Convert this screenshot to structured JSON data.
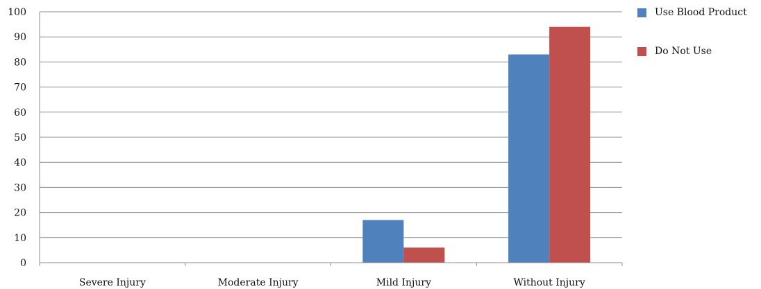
{
  "chart_data": {
    "type": "bar",
    "title": "",
    "xlabel": "",
    "ylabel": "",
    "categories": [
      "Severe Injury",
      "Moderate Injury",
      "Mild Injury",
      "Without Injury"
    ],
    "series": [
      {
        "name": "Use Blood Product",
        "color": "#4F81BD",
        "values": [
          0,
          0,
          17,
          83
        ]
      },
      {
        "name": "Do Not Use",
        "color": "#C0504D",
        "values": [
          0,
          0,
          6,
          94
        ]
      }
    ],
    "ylim": [
      0,
      100
    ],
    "yticks": [
      "0",
      "10",
      "20",
      "30",
      "40",
      "50",
      "60",
      "70",
      "80",
      "90",
      "100"
    ],
    "grid": true,
    "legend_position": "top-right"
  }
}
